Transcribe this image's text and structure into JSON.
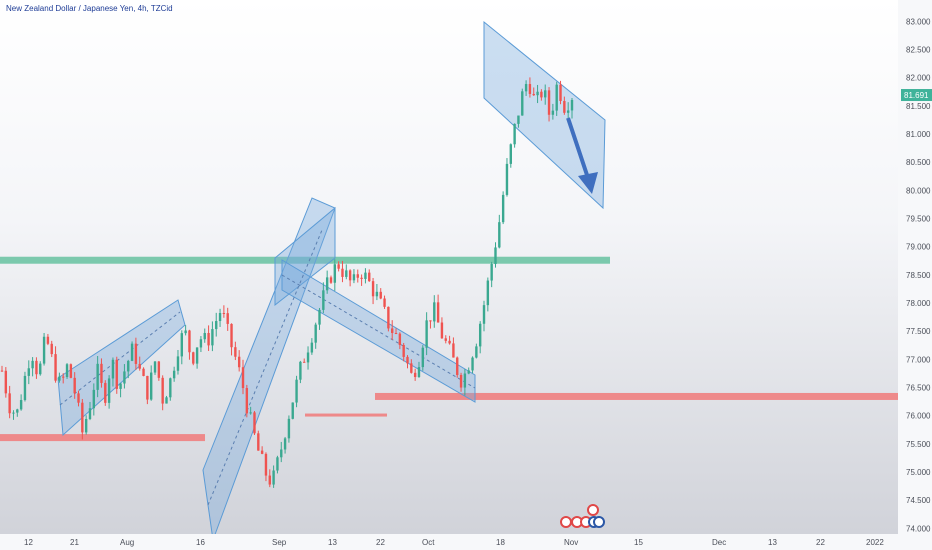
{
  "header": {
    "symbol_title": "New Zealand Dollar / Japanese Yen, 4h, TZCid"
  },
  "colors": {
    "up": "#3aa890",
    "down": "#ef5350",
    "channel_fill": "rgba(120,170,220,0.38)",
    "channel_stroke": "#5b9bd6",
    "support_zone": "#f08080",
    "resistance_zone": "#66c2a0",
    "arrow": "#3f6fbf"
  },
  "chart_data": {
    "type": "candlestick",
    "y_axis": {
      "range": [
        73.9,
        83.2
      ],
      "ticks": [
        "83.000",
        "82.500",
        "82.000",
        "81.500",
        "81.000",
        "80.500",
        "80.000",
        "79.500",
        "79.000",
        "78.500",
        "78.000",
        "77.500",
        "77.000",
        "76.500",
        "76.000",
        "75.500",
        "75.000",
        "74.500",
        "74.000"
      ]
    },
    "x_axis": {
      "ticks": [
        "12",
        "21",
        "Aug",
        "16",
        "Sep",
        "13",
        "22",
        "Oct",
        "18",
        "Nov",
        "15",
        "Dec",
        "13",
        "22",
        "2022"
      ]
    },
    "last_price": "81.691",
    "price_path": [
      76.8,
      76.2,
      76.0,
      76.6,
      77.2,
      76.7,
      77.4,
      76.9,
      76.5,
      76.9,
      76.4,
      75.7,
      76.2,
      76.8,
      76.3,
      77.0,
      76.5,
      76.9,
      77.2,
      76.7,
      76.4,
      77.0,
      76.3,
      76.6,
      77.2,
      77.5,
      77.0,
      77.4,
      77.3,
      77.6,
      77.9,
      77.4,
      77.0,
      76.5,
      75.9,
      75.4,
      75.0,
      74.8,
      75.3,
      75.9,
      76.4,
      76.9,
      77.3,
      77.7,
      78.1,
      78.5,
      78.7,
      78.5,
      78.3,
      78.6,
      78.4,
      78.2,
      77.9,
      77.6,
      77.4,
      77.1,
      76.7,
      77.0,
      77.6,
      77.9,
      77.5,
      77.2,
      76.9,
      76.6,
      77.0,
      77.4,
      78.0,
      78.7,
      79.4,
      80.3,
      81.0,
      81.6,
      82.0,
      81.5,
      81.8,
      81.3,
      81.9,
      81.5,
      81.691
    ],
    "drawings": {
      "resistance_level": 78.75,
      "support_level_right": 76.35,
      "support_level_left": 75.62,
      "small_level": 76.02
    }
  },
  "event_markers": [
    "event-marker",
    "event-marker",
    "event-marker",
    "event-marker",
    "event-marker"
  ]
}
